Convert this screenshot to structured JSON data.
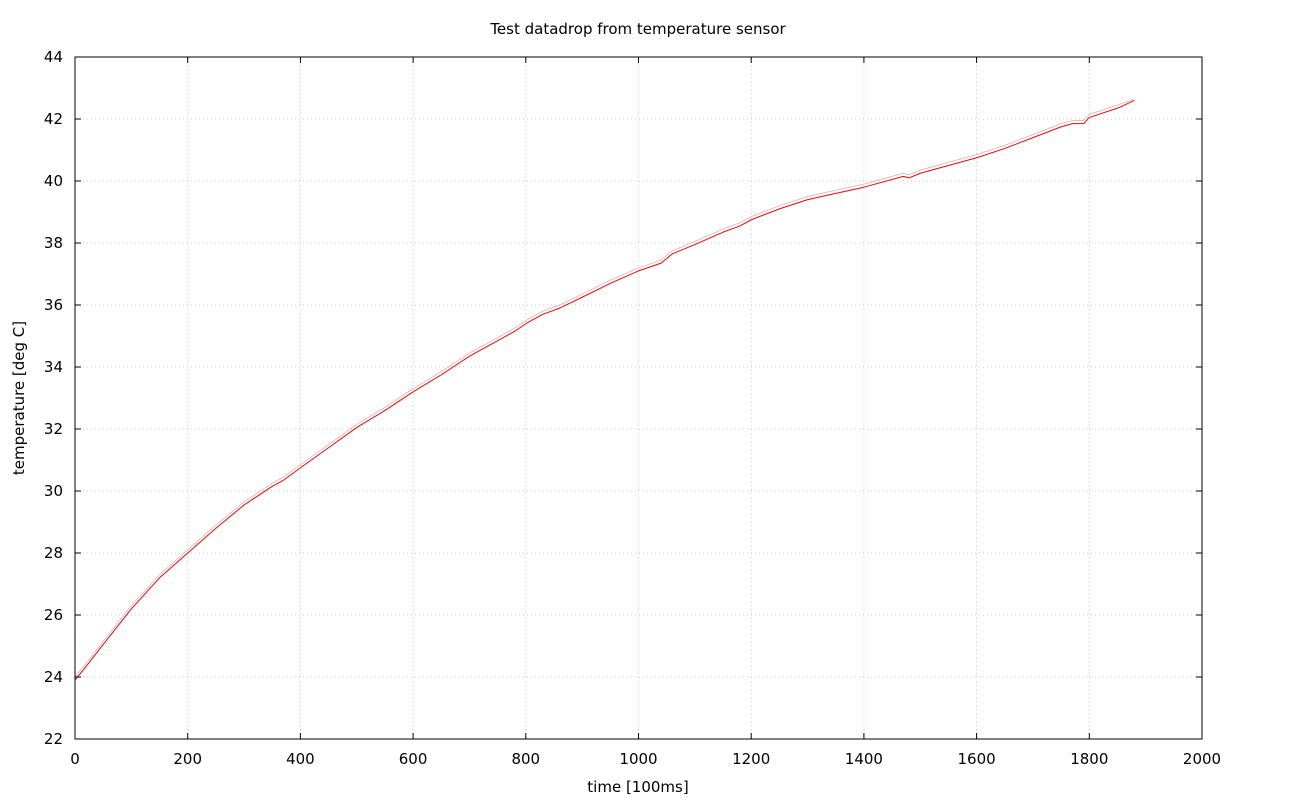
{
  "chart_data": {
    "type": "line",
    "title": "Test datadrop from temperature sensor",
    "xlabel": "time [100ms]",
    "ylabel": "temperature [deg C]",
    "xlim": [
      0,
      2000
    ],
    "ylim": [
      22,
      44
    ],
    "xticks": [
      0,
      200,
      400,
      600,
      800,
      1000,
      1200,
      1400,
      1600,
      1800,
      2000
    ],
    "yticks": [
      22,
      24,
      26,
      28,
      30,
      32,
      34,
      36,
      38,
      40,
      42,
      44
    ],
    "grid": true,
    "legend": "none",
    "series": [
      {
        "color": "#c8c8c8",
        "x": [
          0,
          20,
          50,
          100,
          150,
          200,
          250,
          300,
          350,
          370,
          400,
          450,
          500,
          550,
          600,
          650,
          700,
          750,
          780,
          800,
          830,
          860,
          900,
          950,
          1000,
          1040,
          1060,
          1100,
          1150,
          1180,
          1200,
          1250,
          1300,
          1350,
          1400,
          1450,
          1470,
          1480,
          1500,
          1550,
          1600,
          1650,
          1700,
          1750,
          1770,
          1790,
          1800,
          1850,
          1880
        ],
        "values": [
          24.0,
          24.45,
          25.15,
          26.3,
          27.3,
          28.1,
          28.9,
          29.65,
          30.25,
          30.45,
          30.85,
          31.5,
          32.15,
          32.7,
          33.3,
          33.85,
          34.45,
          34.95,
          35.25,
          35.5,
          35.8,
          36.0,
          36.35,
          36.8,
          37.2,
          37.45,
          37.75,
          38.05,
          38.45,
          38.65,
          38.85,
          39.2,
          39.5,
          39.7,
          39.9,
          40.15,
          40.25,
          40.2,
          40.35,
          40.6,
          40.85,
          41.15,
          41.5,
          41.85,
          41.95,
          41.95,
          42.15,
          42.45,
          42.65
        ]
      },
      {
        "color": "#ff0000",
        "x": [
          0,
          20,
          50,
          100,
          150,
          200,
          250,
          300,
          350,
          370,
          400,
          450,
          500,
          550,
          600,
          650,
          700,
          750,
          780,
          800,
          830,
          860,
          900,
          950,
          1000,
          1040,
          1060,
          1100,
          1150,
          1180,
          1200,
          1250,
          1300,
          1350,
          1400,
          1450,
          1470,
          1480,
          1500,
          1550,
          1600,
          1650,
          1700,
          1750,
          1770,
          1790,
          1800,
          1850,
          1880
        ],
        "values": [
          23.9,
          24.35,
          25.05,
          26.2,
          27.2,
          28.0,
          28.8,
          29.55,
          30.15,
          30.35,
          30.75,
          31.4,
          32.05,
          32.6,
          33.2,
          33.75,
          34.35,
          34.85,
          35.15,
          35.4,
          35.7,
          35.9,
          36.25,
          36.7,
          37.1,
          37.35,
          37.65,
          37.95,
          38.35,
          38.55,
          38.75,
          39.1,
          39.4,
          39.6,
          39.8,
          40.05,
          40.15,
          40.1,
          40.25,
          40.5,
          40.75,
          41.05,
          41.4,
          41.75,
          41.85,
          41.85,
          42.05,
          42.35,
          42.6
        ]
      }
    ]
  }
}
